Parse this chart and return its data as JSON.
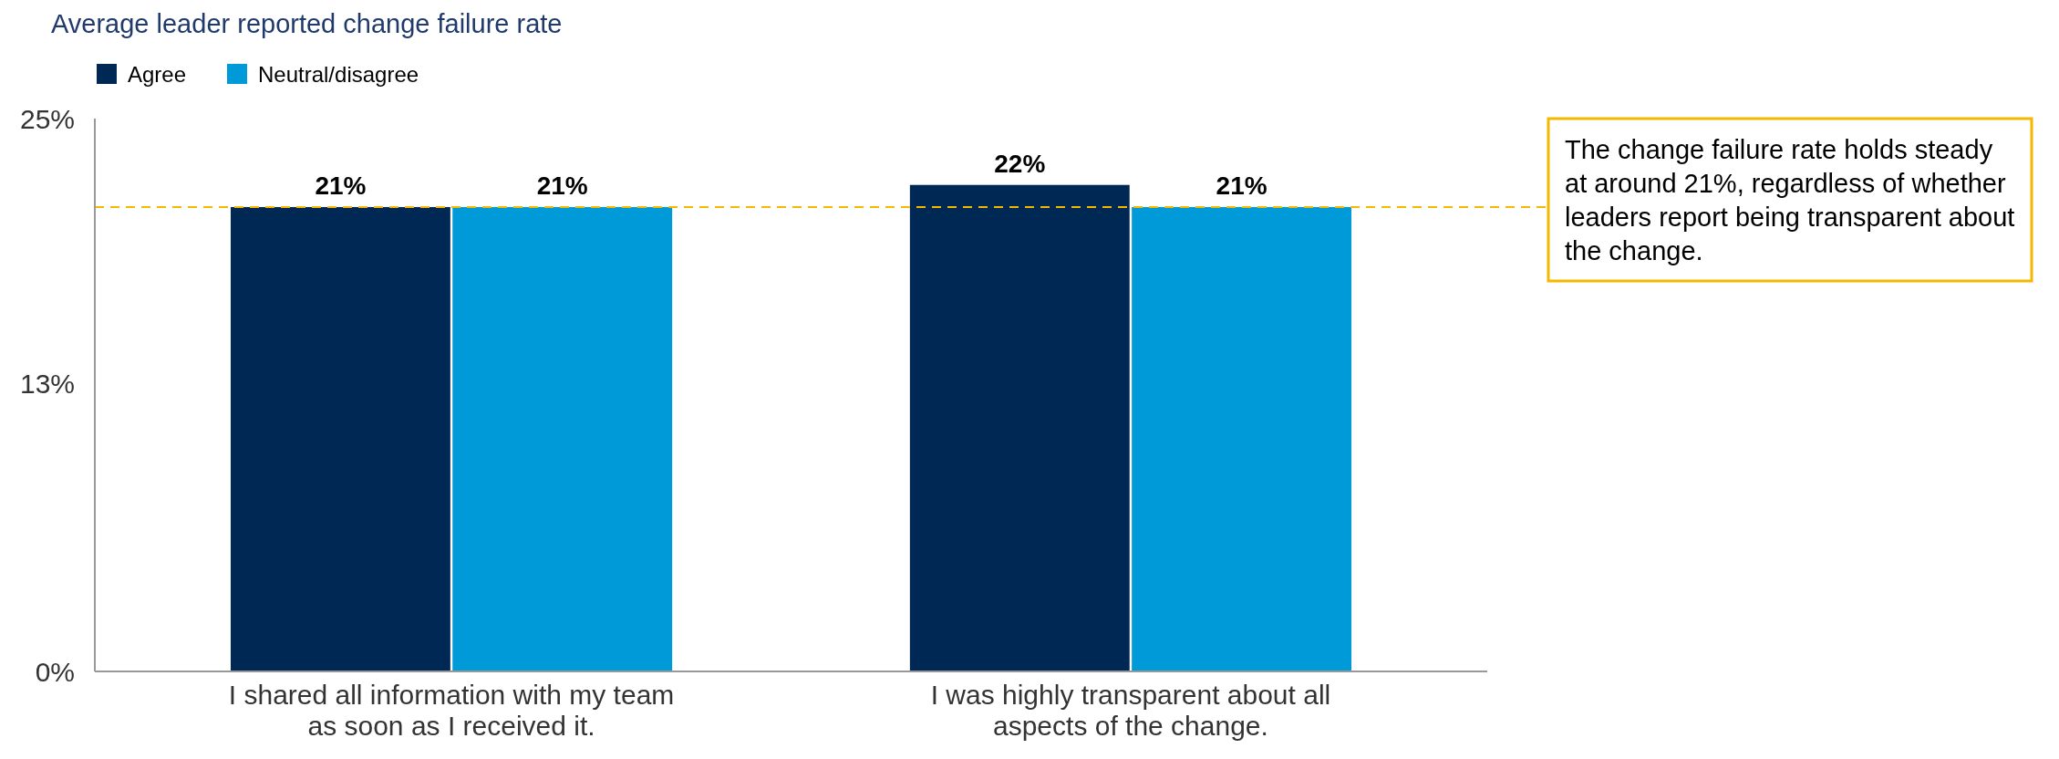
{
  "chart_data": {
    "type": "bar",
    "title": "Average leader reported change failure rate",
    "categories": [
      "I shared all information with my team as soon as I received it.",
      "I was highly transparent about all aspects of the change."
    ],
    "series": [
      {
        "name": "Agree",
        "color": "#002855",
        "values": [
          21,
          22
        ],
        "value_labels": [
          "21%",
          "22%"
        ]
      },
      {
        "name": "Neutral/disagree",
        "color": "#009ad9",
        "values": [
          21,
          21
        ],
        "value_labels": [
          "21%",
          "21%"
        ]
      }
    ],
    "ylim": [
      0,
      25
    ],
    "yticks": [
      {
        "value": 0,
        "label": "0%"
      },
      {
        "value": 13,
        "label": "13%"
      },
      {
        "value": 25,
        "label": "25%"
      }
    ],
    "legend": "top left",
    "grid": false,
    "ref_lines": [
      {
        "axis": "y",
        "value": 21,
        "label": null,
        "color": "#f5b800",
        "line_style": "dashed"
      }
    ],
    "annotations": [
      "The change failure rate holds steady at around 21%, regardless of whether leaders report being transparent about the change."
    ]
  }
}
